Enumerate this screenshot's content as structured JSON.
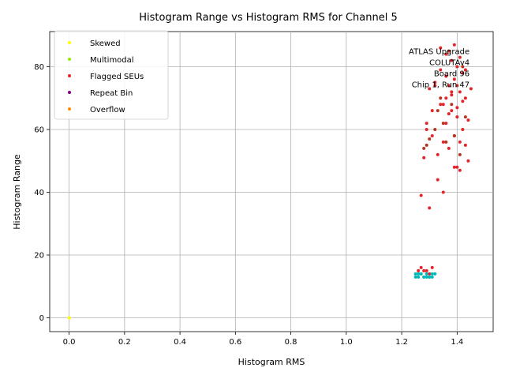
{
  "chart_data": {
    "type": "scatter",
    "title": "Histogram Range vs Histogram RMS for Channel 5",
    "xlabel": "Histogram RMS",
    "ylabel": "Histogram Range",
    "xlim": [
      -0.07,
      1.53
    ],
    "ylim": [
      -4.4,
      91.2
    ],
    "xticks": [
      0.0,
      0.2,
      0.4,
      0.6,
      0.8,
      1.0,
      1.2,
      1.4
    ],
    "xtick_labels": [
      "0.0",
      "0.2",
      "0.4",
      "0.6",
      "0.8",
      "1.0",
      "1.2",
      "1.4"
    ],
    "yticks": [
      0,
      20,
      40,
      60,
      80
    ],
    "ytick_labels": [
      "0",
      "20",
      "40",
      "60",
      "80"
    ],
    "grid": true,
    "legend_position": "upper-left",
    "annotation": [
      "ATLAS Upgrade",
      "COLUTAv4",
      "Board 96",
      "Chip 1, Run 47"
    ],
    "series": [
      {
        "name": "Skewed",
        "color": "#ffff00",
        "x": [
          0.0
        ],
        "y": [
          0.0
        ]
      },
      {
        "name": "Multimodal",
        "color": "#99e600",
        "x": [],
        "y": []
      },
      {
        "name": "Flagged SEUs",
        "color": "#e3242b",
        "x": [
          1.34,
          1.36,
          1.38,
          1.4,
          1.42,
          1.39,
          1.37,
          1.41,
          1.43,
          1.35,
          1.38,
          1.4,
          1.36,
          1.42,
          1.39,
          1.41,
          1.37,
          1.33,
          1.44,
          1.4,
          1.38,
          1.36,
          1.34,
          1.32,
          1.3,
          1.29,
          1.31,
          1.35,
          1.28,
          1.27,
          1.3,
          1.33,
          1.35,
          1.39,
          1.41,
          1.43,
          1.37,
          1.4,
          1.42,
          1.38,
          1.36,
          1.34,
          1.29,
          1.31,
          1.32,
          1.44,
          1.45,
          1.43,
          1.41,
          1.39,
          1.26,
          1.28,
          1.3,
          1.27,
          1.29,
          1.31
        ],
        "y": [
          86,
          84,
          82,
          80,
          78,
          76,
          74,
          72,
          70,
          68,
          66,
          64,
          62,
          60,
          58,
          56,
          54,
          52,
          50,
          48,
          72,
          70,
          68,
          75,
          73,
          62,
          58,
          56,
          51,
          39,
          35,
          44,
          40,
          48,
          47,
          55,
          65,
          67,
          69,
          71,
          77,
          79,
          60,
          66,
          74,
          63,
          73,
          79,
          83,
          87,
          15,
          15,
          14,
          16,
          15,
          16
        ]
      },
      {
        "name": "Repeat Bin",
        "color": "#800080",
        "x": [],
        "y": []
      },
      {
        "name": "Overflow",
        "color": "#ff8c00",
        "x": [],
        "y": []
      },
      {
        "name": "",
        "color": "#b5341f",
        "x": [
          1.35,
          1.38,
          1.4,
          1.42,
          1.37,
          1.39,
          1.41,
          1.36,
          1.43,
          1.34,
          1.33,
          1.32,
          1.3,
          1.29,
          1.28
        ],
        "y": [
          62,
          68,
          74,
          80,
          85,
          58,
          52,
          56,
          64,
          70,
          66,
          60,
          57,
          55,
          54
        ]
      },
      {
        "name": "",
        "color": "#00b8b8",
        "x": [
          1.25,
          1.26,
          1.27,
          1.28,
          1.29,
          1.3,
          1.31,
          1.32,
          1.26,
          1.28,
          1.3,
          1.27,
          1.29,
          1.31,
          1.25
        ],
        "y": [
          13,
          13,
          14,
          13,
          14,
          13,
          14,
          14,
          14,
          13,
          13,
          14,
          13,
          13,
          14
        ]
      }
    ]
  }
}
